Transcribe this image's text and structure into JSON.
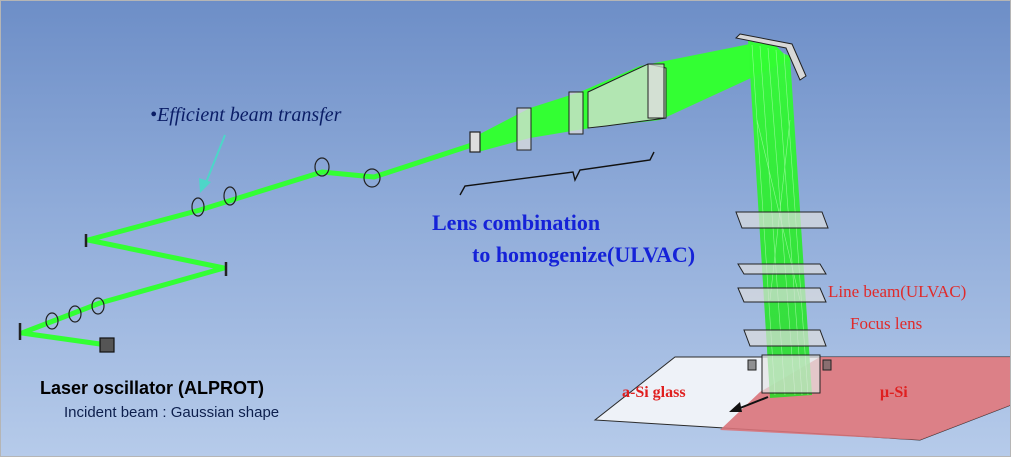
{
  "labels": {
    "efficient_transfer": "•Efficient beam transfer",
    "lens_combination_line1": "Lens combination",
    "lens_combination_line2": "to homogenize(ULVAC)",
    "line_beam": "Line beam(ULVAC)",
    "focus_lens": "Focus lens",
    "a_si_glass": "a-Si glass",
    "mu_si": "μ-Si",
    "laser_oscillator": "Laser oscillator  (ALPROT)",
    "incident_beam": "Incident beam : Gaussian shape"
  },
  "colors": {
    "background_top": "#6d8ec7",
    "background_bottom": "#b6cbea",
    "beam": "#33ff33",
    "efficient_text": "#0a1d66",
    "lens_text": "#1522d8",
    "red_text": "#e02a2a",
    "mu_si_region": "#d9737a",
    "glass": "#eef2f8",
    "arrow_cyan": "#4dd6c8"
  }
}
